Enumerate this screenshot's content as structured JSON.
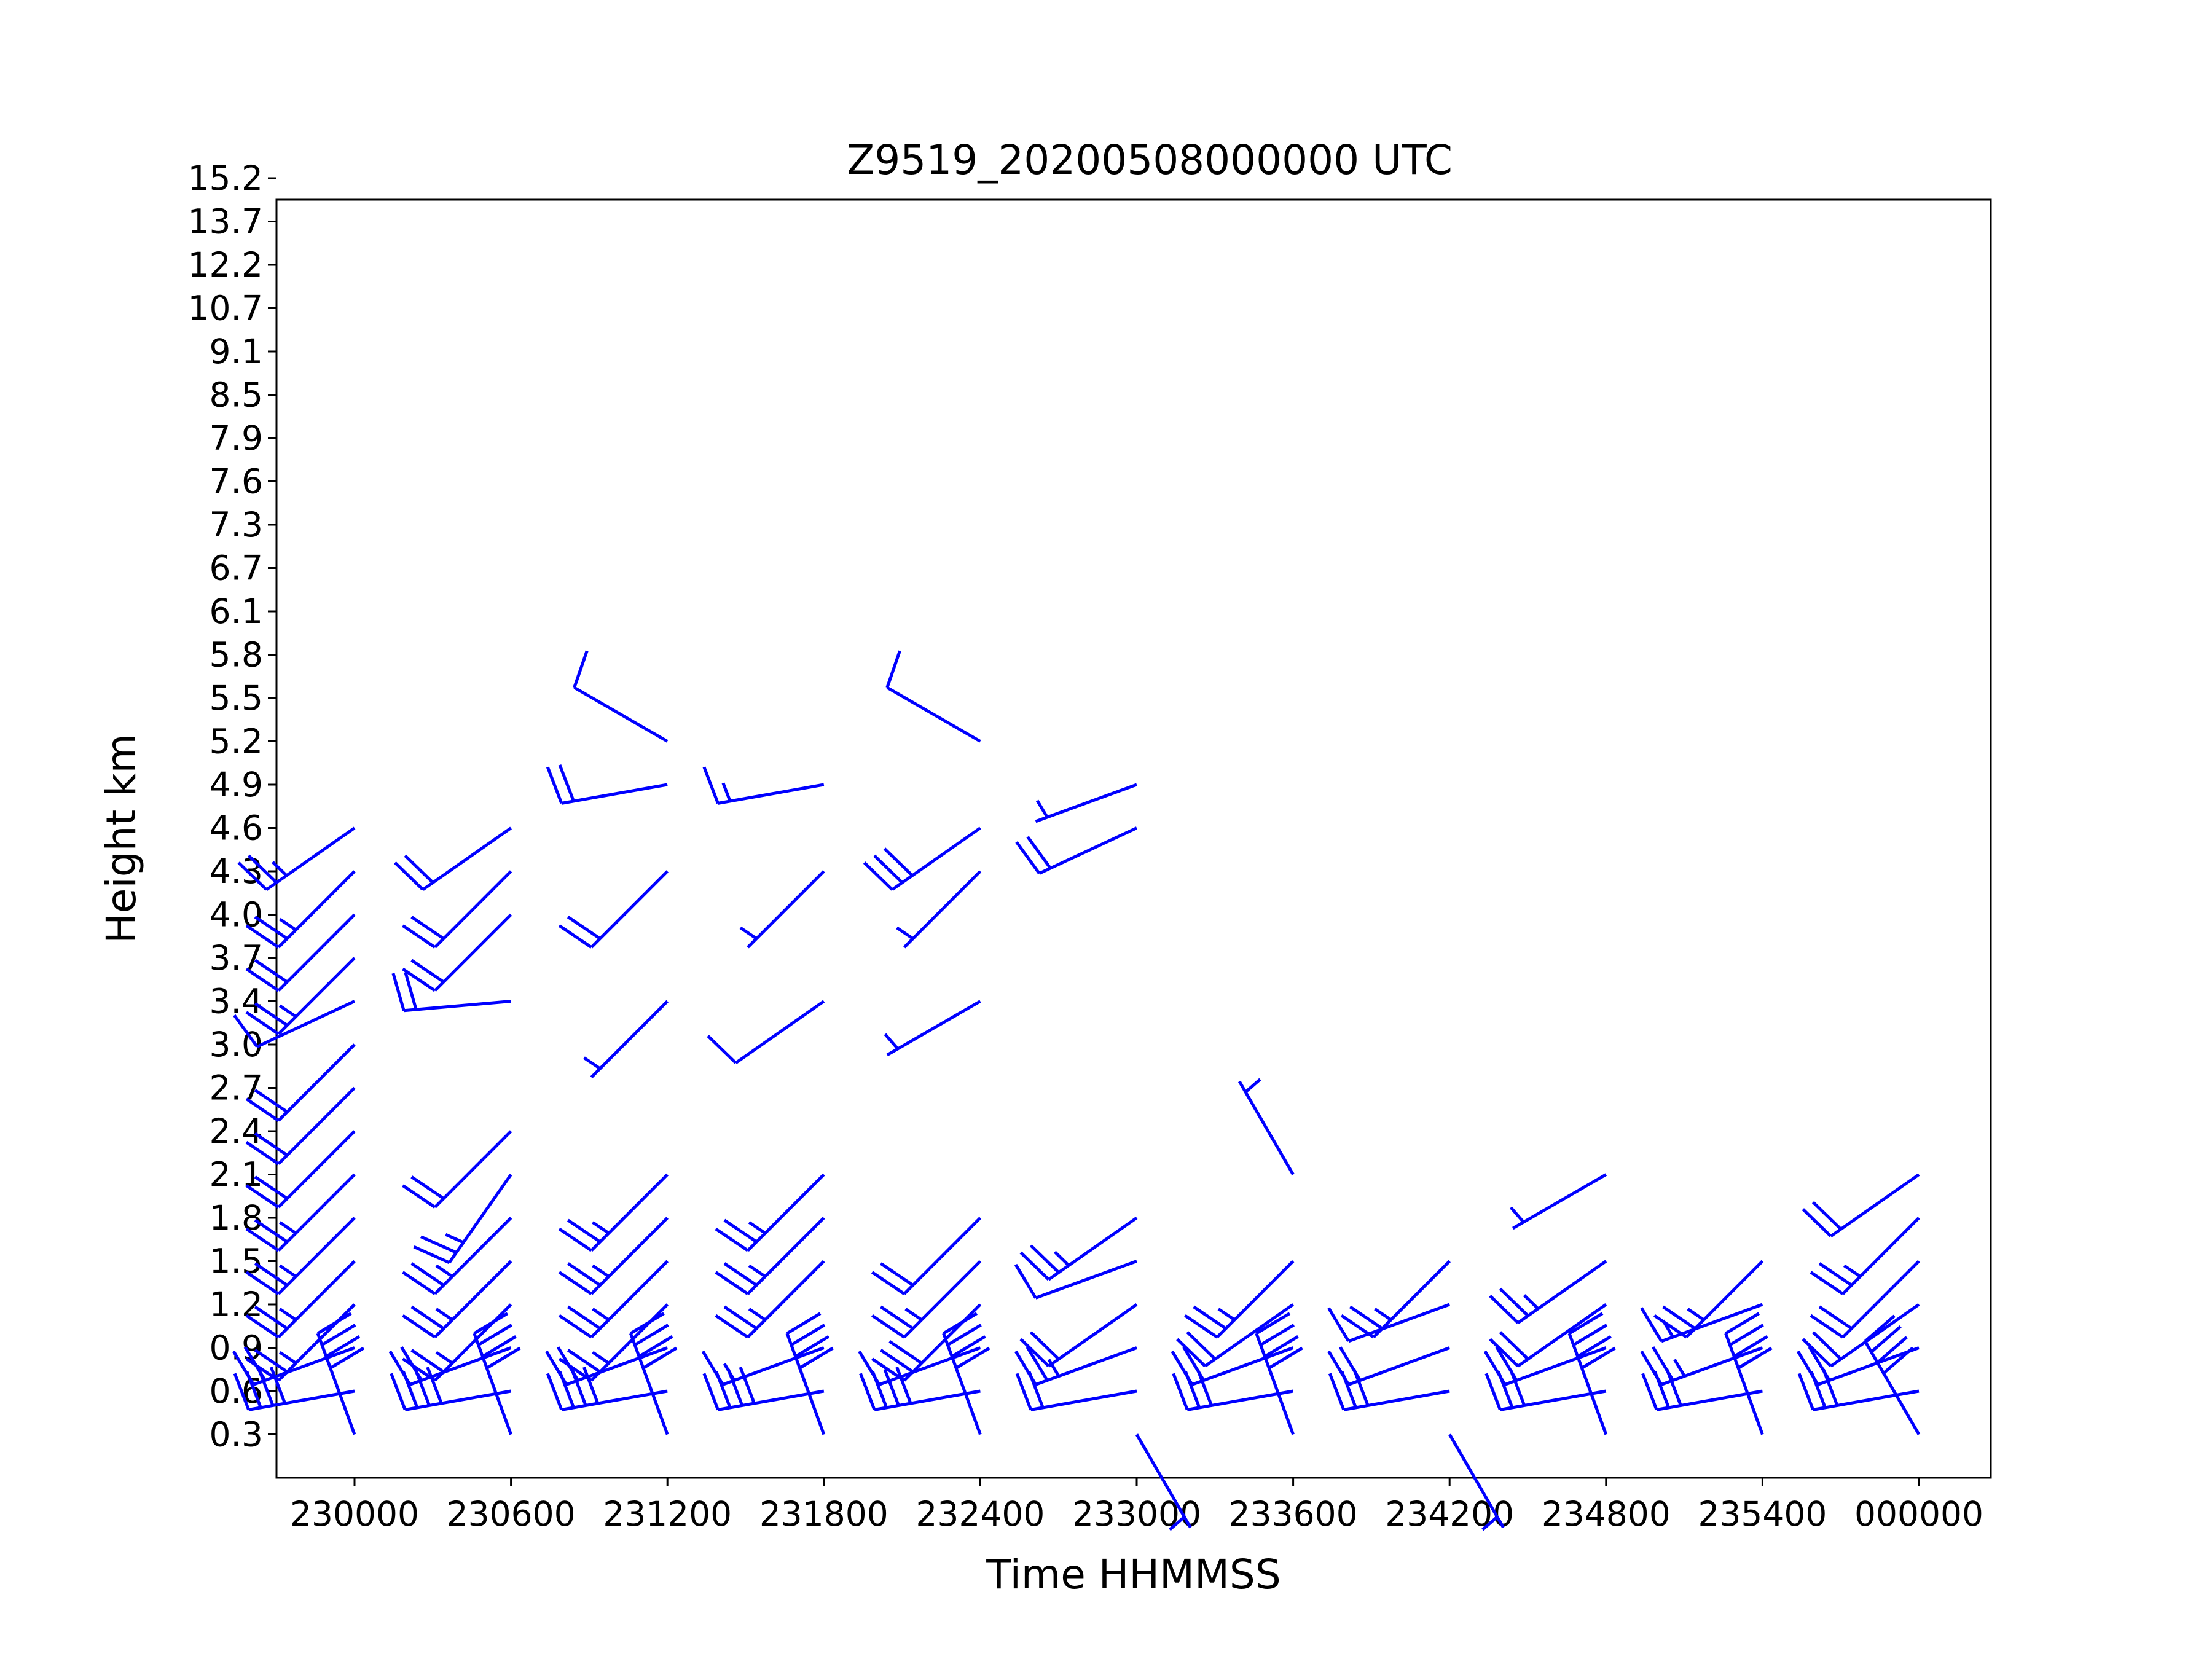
{
  "chart_data": {
    "type": "wind-barb",
    "title": "Z9519_20200508000000 UTC",
    "xlabel": "Time HHMMSS",
    "ylabel": "Height km",
    "barb_color": "#0000ff",
    "x_ticks": [
      "230000",
      "230600",
      "231200",
      "231800",
      "232400",
      "233000",
      "233600",
      "234200",
      "234800",
      "235400",
      "000000"
    ],
    "y_ticks": [
      "0.3",
      "0.6",
      "0.9",
      "1.2",
      "1.5",
      "1.8",
      "2.1",
      "2.4",
      "2.7",
      "3.0",
      "3.4",
      "3.7",
      "4.0",
      "4.3",
      "4.6",
      "4.9",
      "5.2",
      "5.5",
      "5.8",
      "6.1",
      "6.7",
      "7.3",
      "7.6",
      "7.9",
      "8.5",
      "9.1",
      "10.7",
      "12.2",
      "13.7",
      "15.2"
    ],
    "barbs_note": "wind barbs: x = time index, y = height level index, angle = compass direction the wind blows from (deg), speed = knots",
    "barbs": [
      {
        "x": 0,
        "y": 0,
        "dir": 340,
        "spd": 40
      },
      {
        "x": 0,
        "y": 1,
        "dir": 260,
        "spd": 40
      },
      {
        "x": 0,
        "y": 2,
        "dir": 250,
        "spd": 20
      },
      {
        "x": 0,
        "y": 3,
        "dir": 225,
        "spd": 25
      },
      {
        "x": 0,
        "y": 4,
        "dir": 225,
        "spd": 25
      },
      {
        "x": 0,
        "y": 5,
        "dir": 225,
        "spd": 25
      },
      {
        "x": 0,
        "y": 6,
        "dir": 225,
        "spd": 25
      },
      {
        "x": 0,
        "y": 7,
        "dir": 225,
        "spd": 20
      },
      {
        "x": 0,
        "y": 8,
        "dir": 225,
        "spd": 20
      },
      {
        "x": 0,
        "y": 9,
        "dir": 225,
        "spd": 20
      },
      {
        "x": 0,
        "y": 10,
        "dir": 245,
        "spd": 10
      },
      {
        "x": 0,
        "y": 11,
        "dir": 225,
        "spd": 25
      },
      {
        "x": 0,
        "y": 12,
        "dir": 225,
        "spd": 20
      },
      {
        "x": 0,
        "y": 13,
        "dir": 225,
        "spd": 25
      },
      {
        "x": 0,
        "y": 14,
        "dir": 235,
        "spd": 25
      },
      {
        "x": 1,
        "y": 0,
        "dir": 340,
        "spd": 40
      },
      {
        "x": 1,
        "y": 1,
        "dir": 260,
        "spd": 40
      },
      {
        "x": 1,
        "y": 2,
        "dir": 250,
        "spd": 20
      },
      {
        "x": 1,
        "y": 3,
        "dir": 225,
        "spd": 25
      },
      {
        "x": 1,
        "y": 4,
        "dir": 225,
        "spd": 25
      },
      {
        "x": 1,
        "y": 5,
        "dir": 225,
        "spd": 25
      },
      {
        "x": 1,
        "y": 6,
        "dir": 215,
        "spd": 25
      },
      {
        "x": 1,
        "y": 7,
        "dir": 225,
        "spd": 20
      },
      {
        "x": 1,
        "y": 10,
        "dir": 265,
        "spd": 20
      },
      {
        "x": 1,
        "y": 12,
        "dir": 225,
        "spd": 20
      },
      {
        "x": 1,
        "y": 13,
        "dir": 225,
        "spd": 20
      },
      {
        "x": 1,
        "y": 14,
        "dir": 235,
        "spd": 20
      },
      {
        "x": 2,
        "y": 0,
        "dir": 340,
        "spd": 40
      },
      {
        "x": 2,
        "y": 1,
        "dir": 260,
        "spd": 40
      },
      {
        "x": 2,
        "y": 2,
        "dir": 250,
        "spd": 20
      },
      {
        "x": 2,
        "y": 3,
        "dir": 225,
        "spd": 25
      },
      {
        "x": 2,
        "y": 4,
        "dir": 225,
        "spd": 25
      },
      {
        "x": 2,
        "y": 5,
        "dir": 225,
        "spd": 25
      },
      {
        "x": 2,
        "y": 6,
        "dir": 225,
        "spd": 25
      },
      {
        "x": 2,
        "y": 10,
        "dir": 225,
        "spd": 5
      },
      {
        "x": 2,
        "y": 13,
        "dir": 225,
        "spd": 20
      },
      {
        "x": 2,
        "y": 15,
        "dir": 260,
        "spd": 20
      },
      {
        "x": 2,
        "y": 16,
        "dir": 300,
        "spd": 10
      },
      {
        "x": 3,
        "y": 0,
        "dir": 340,
        "spd": 40
      },
      {
        "x": 3,
        "y": 1,
        "dir": 260,
        "spd": 40
      },
      {
        "x": 3,
        "y": 2,
        "dir": 250,
        "spd": 15
      },
      {
        "x": 3,
        "y": 4,
        "dir": 225,
        "spd": 25
      },
      {
        "x": 3,
        "y": 5,
        "dir": 225,
        "spd": 25
      },
      {
        "x": 3,
        "y": 6,
        "dir": 225,
        "spd": 25
      },
      {
        "x": 3,
        "y": 10,
        "dir": 235,
        "spd": 10
      },
      {
        "x": 3,
        "y": 13,
        "dir": 225,
        "spd": 5
      },
      {
        "x": 3,
        "y": 15,
        "dir": 260,
        "spd": 15
      },
      {
        "x": 4,
        "y": 0,
        "dir": 340,
        "spd": 40
      },
      {
        "x": 4,
        "y": 1,
        "dir": 260,
        "spd": 40
      },
      {
        "x": 4,
        "y": 2,
        "dir": 250,
        "spd": 10
      },
      {
        "x": 4,
        "y": 3,
        "dir": 225,
        "spd": 30
      },
      {
        "x": 4,
        "y": 4,
        "dir": 225,
        "spd": 25
      },
      {
        "x": 4,
        "y": 5,
        "dir": 225,
        "spd": 20
      },
      {
        "x": 4,
        "y": 10,
        "dir": 240,
        "spd": 5
      },
      {
        "x": 4,
        "y": 13,
        "dir": 225,
        "spd": 5
      },
      {
        "x": 4,
        "y": 14,
        "dir": 235,
        "spd": 30
      },
      {
        "x": 4,
        "y": 16,
        "dir": 300,
        "spd": 10
      },
      {
        "x": 5,
        "y": 0,
        "dir": 150,
        "spd": 5
      },
      {
        "x": 5,
        "y": 1,
        "dir": 260,
        "spd": 20
      },
      {
        "x": 5,
        "y": 2,
        "dir": 250,
        "spd": 25
      },
      {
        "x": 5,
        "y": 3,
        "dir": 235,
        "spd": 20
      },
      {
        "x": 5,
        "y": 4,
        "dir": 250,
        "spd": 10
      },
      {
        "x": 5,
        "y": 5,
        "dir": 235,
        "spd": 25
      },
      {
        "x": 5,
        "y": 14,
        "dir": 245,
        "spd": 20
      },
      {
        "x": 5,
        "y": 15,
        "dir": 250,
        "spd": 5
      },
      {
        "x": 6,
        "y": 0,
        "dir": 340,
        "spd": 40
      },
      {
        "x": 6,
        "y": 1,
        "dir": 260,
        "spd": 30
      },
      {
        "x": 6,
        "y": 2,
        "dir": 250,
        "spd": 20
      },
      {
        "x": 6,
        "y": 3,
        "dir": 235,
        "spd": 20
      },
      {
        "x": 6,
        "y": 4,
        "dir": 225,
        "spd": 25
      },
      {
        "x": 6,
        "y": 6,
        "dir": 330,
        "spd": 5
      },
      {
        "x": 7,
        "y": 0,
        "dir": 150,
        "spd": 5
      },
      {
        "x": 7,
        "y": 1,
        "dir": 260,
        "spd": 30
      },
      {
        "x": 7,
        "y": 2,
        "dir": 250,
        "spd": 20
      },
      {
        "x": 7,
        "y": 3,
        "dir": 250,
        "spd": 10
      },
      {
        "x": 7,
        "y": 4,
        "dir": 225,
        "spd": 25
      },
      {
        "x": 8,
        "y": 0,
        "dir": 340,
        "spd": 40
      },
      {
        "x": 8,
        "y": 1,
        "dir": 260,
        "spd": 30
      },
      {
        "x": 8,
        "y": 2,
        "dir": 250,
        "spd": 20
      },
      {
        "x": 8,
        "y": 3,
        "dir": 235,
        "spd": 20
      },
      {
        "x": 8,
        "y": 4,
        "dir": 235,
        "spd": 25
      },
      {
        "x": 8,
        "y": 6,
        "dir": 240,
        "spd": 5
      },
      {
        "x": 9,
        "y": 0,
        "dir": 340,
        "spd": 40
      },
      {
        "x": 9,
        "y": 1,
        "dir": 260,
        "spd": 30
      },
      {
        "x": 9,
        "y": 2,
        "dir": 250,
        "spd": 25
      },
      {
        "x": 9,
        "y": 3,
        "dir": 250,
        "spd": 15
      },
      {
        "x": 9,
        "y": 4,
        "dir": 225,
        "spd": 25
      },
      {
        "x": 10,
        "y": 0,
        "dir": 330,
        "spd": 40
      },
      {
        "x": 10,
        "y": 1,
        "dir": 260,
        "spd": 30
      },
      {
        "x": 10,
        "y": 2,
        "dir": 250,
        "spd": 20
      },
      {
        "x": 10,
        "y": 3,
        "dir": 235,
        "spd": 20
      },
      {
        "x": 10,
        "y": 4,
        "dir": 225,
        "spd": 20
      },
      {
        "x": 10,
        "y": 5,
        "dir": 225,
        "spd": 25
      },
      {
        "x": 10,
        "y": 6,
        "dir": 235,
        "spd": 20
      }
    ]
  }
}
